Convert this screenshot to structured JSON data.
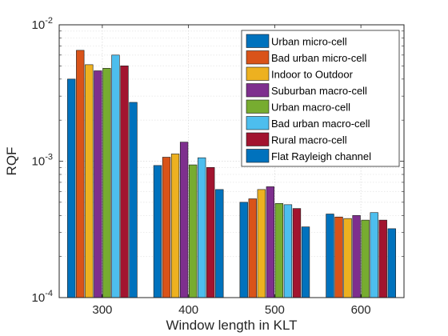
{
  "chart_data": {
    "type": "bar",
    "xlabel": "Window length in KLT",
    "ylabel": "RQF",
    "yscale": "log",
    "ylim": [
      0.0001,
      0.01
    ],
    "ytick_labels": [
      "10^-4",
      "10^-3",
      "10^-2"
    ],
    "grid": true,
    "legend_placement": "top-right",
    "categories": [
      "300",
      "400",
      "500",
      "600"
    ],
    "series": [
      {
        "name": "Urban micro-cell",
        "color": "#0072BD",
        "values": [
          0.004,
          0.00093,
          0.0005,
          0.00041
        ]
      },
      {
        "name": "Bad urban micro-cell",
        "color": "#D95319",
        "values": [
          0.0065,
          0.00107,
          0.00053,
          0.00039
        ]
      },
      {
        "name": "Indoor to Outdoor",
        "color": "#EDB120",
        "values": [
          0.0051,
          0.00113,
          0.00062,
          0.00038
        ]
      },
      {
        "name": "Suburban macro-cell",
        "color": "#7E2F8E",
        "values": [
          0.0046,
          0.00138,
          0.00065,
          0.0004
        ]
      },
      {
        "name": "Urban macro-cell",
        "color": "#77AC30",
        "values": [
          0.0048,
          0.00094,
          0.00049,
          0.00037
        ]
      },
      {
        "name": "Bad urban macro-cell",
        "color": "#4DBEEE",
        "values": [
          0.006,
          0.00106,
          0.00048,
          0.00042
        ]
      },
      {
        "name": "Rural macro-cell",
        "color": "#A2142F",
        "values": [
          0.005,
          0.0009,
          0.00045,
          0.00037
        ]
      },
      {
        "name": "Flat Rayleigh channel",
        "color": "#0072BD",
        "values": [
          0.0027,
          0.00062,
          0.00033,
          0.00032
        ]
      }
    ]
  }
}
